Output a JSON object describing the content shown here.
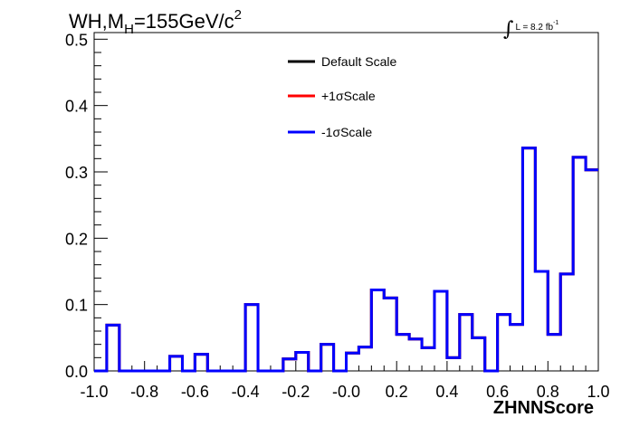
{
  "title": {
    "pre": "WH,M",
    "sub": "H",
    "mid": "=155GeV/c",
    "sup": "2"
  },
  "lumi": {
    "integral": "∫",
    "text": "L = 8.2 fb",
    "sup": "-1"
  },
  "chart_data": {
    "type": "histogram",
    "xlabel": "ZHNNScore",
    "ylabel": "",
    "xlim": [
      -1.0,
      1.0
    ],
    "ylim": [
      0,
      0.51
    ],
    "grid": false,
    "legend_position": "top-center",
    "x_ticks": [
      "-1.0",
      "-0.8",
      "-0.6",
      "-0.4",
      "-0.2",
      "-0.0",
      "0.2",
      "0.4",
      "0.6",
      "0.8",
      "1.0"
    ],
    "y_ticks": [
      "0.0",
      "0.1",
      "0.2",
      "0.3",
      "0.4",
      "0.5"
    ],
    "bin_edges": [
      -1.0,
      -0.95,
      -0.9,
      -0.85,
      -0.8,
      -0.75,
      -0.7,
      -0.65,
      -0.6,
      -0.55,
      -0.5,
      -0.45,
      -0.4,
      -0.35,
      -0.3,
      -0.25,
      -0.2,
      -0.15,
      -0.1,
      -0.05,
      0.0,
      0.05,
      0.1,
      0.15,
      0.2,
      0.25,
      0.3,
      0.35,
      0.4,
      0.45,
      0.5,
      0.55,
      0.6,
      0.65,
      0.7,
      0.75,
      0.8,
      0.85,
      0.9,
      0.95,
      1.0
    ],
    "series": [
      {
        "name": "Default Scale",
        "color": "#000000",
        "values": [
          0.0,
          0.069,
          0.0,
          0.0,
          0.0,
          0.0,
          0.022,
          0.0,
          0.025,
          0.0,
          0.0,
          0.0,
          0.1,
          0.0,
          0.0,
          0.018,
          0.028,
          0.0,
          0.04,
          0.0,
          0.027,
          0.036,
          0.122,
          0.11,
          0.055,
          0.048,
          0.035,
          0.12,
          0.02,
          0.085,
          0.05,
          0.0,
          0.085,
          0.07,
          0.336,
          0.15,
          0.055,
          0.146,
          0.322,
          0.303
        ]
      },
      {
        "name": "+1σScale",
        "color": "#ff0000",
        "values": [
          0.0,
          0.069,
          0.0,
          0.0,
          0.0,
          0.0,
          0.022,
          0.0,
          0.025,
          0.0,
          0.0,
          0.0,
          0.1,
          0.0,
          0.0,
          0.018,
          0.028,
          0.0,
          0.04,
          0.0,
          0.027,
          0.036,
          0.122,
          0.11,
          0.055,
          0.048,
          0.035,
          0.12,
          0.02,
          0.085,
          0.05,
          0.0,
          0.085,
          0.07,
          0.336,
          0.15,
          0.055,
          0.146,
          0.322,
          0.303
        ]
      },
      {
        "name": "-1σScale",
        "color": "#0000ff",
        "values": [
          0.0,
          0.069,
          0.0,
          0.0,
          0.0,
          0.0,
          0.022,
          0.0,
          0.025,
          0.0,
          0.0,
          0.0,
          0.1,
          0.0,
          0.0,
          0.018,
          0.028,
          0.0,
          0.04,
          0.0,
          0.027,
          0.036,
          0.122,
          0.11,
          0.055,
          0.048,
          0.035,
          0.12,
          0.02,
          0.085,
          0.05,
          0.0,
          0.085,
          0.07,
          0.336,
          0.15,
          0.055,
          0.146,
          0.322,
          0.303
        ]
      }
    ]
  }
}
